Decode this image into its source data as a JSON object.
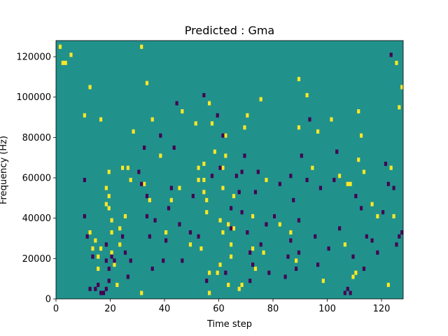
{
  "chart_data": {
    "type": "heatmap",
    "title": "Predicted : Gma",
    "xlabel": "Time step",
    "ylabel": "Frequency (Hz)",
    "xlim": [
      0,
      128
    ],
    "ylim": [
      0,
      128000
    ],
    "x_ticks": [
      0,
      20,
      40,
      60,
      80,
      100,
      120
    ],
    "y_ticks": [
      0,
      20000,
      40000,
      60000,
      80000,
      100000,
      120000
    ],
    "y_tick_labels": [
      "0",
      "20000",
      "40000",
      "60000",
      "80000",
      "100000",
      "120000"
    ],
    "colormap": "viridis",
    "colors": {
      "background": "#21918c",
      "high": "#fde725",
      "low": "#440154"
    },
    "grid": false,
    "legend": "none",
    "cells_high": [
      [
        1,
        124000
      ],
      [
        2,
        116000
      ],
      [
        3,
        116000
      ],
      [
        5,
        120000
      ],
      [
        10,
        90000
      ],
      [
        12,
        104000
      ],
      [
        12,
        32000
      ],
      [
        13,
        24000
      ],
      [
        14,
        28000
      ],
      [
        15,
        20000
      ],
      [
        15,
        14000
      ],
      [
        16,
        88000
      ],
      [
        16,
        24000
      ],
      [
        18,
        54000
      ],
      [
        18,
        46000
      ],
      [
        19,
        62000
      ],
      [
        19,
        50000
      ],
      [
        19,
        44000
      ],
      [
        20,
        38000
      ],
      [
        20,
        32000
      ],
      [
        20,
        22000
      ],
      [
        21,
        16000
      ],
      [
        22,
        6000
      ],
      [
        23,
        34000
      ],
      [
        23,
        26000
      ],
      [
        24,
        64000
      ],
      [
        25,
        40000
      ],
      [
        26,
        64000
      ],
      [
        27,
        58000
      ],
      [
        28,
        82000
      ],
      [
        31,
        124000
      ],
      [
        31,
        2000
      ],
      [
        32,
        56000
      ],
      [
        33,
        106000
      ],
      [
        34,
        48000
      ],
      [
        35,
        88000
      ],
      [
        38,
        70000
      ],
      [
        40,
        32000
      ],
      [
        42,
        48000
      ],
      [
        45,
        54000
      ],
      [
        46,
        92000
      ],
      [
        49,
        26000
      ],
      [
        51,
        86000
      ],
      [
        52,
        58000
      ],
      [
        52,
        64000
      ],
      [
        53,
        24000
      ],
      [
        54,
        66000
      ],
      [
        54,
        58000
      ],
      [
        54,
        52000
      ],
      [
        55,
        48000
      ],
      [
        55,
        42000
      ],
      [
        56,
        96000
      ],
      [
        56,
        12000
      ],
      [
        56,
        2000
      ],
      [
        57,
        86000
      ],
      [
        58,
        72000
      ],
      [
        59,
        12000
      ],
      [
        60,
        38000
      ],
      [
        60,
        16000
      ],
      [
        61,
        32000
      ],
      [
        61,
        54000
      ],
      [
        61,
        64000
      ],
      [
        62,
        70000
      ],
      [
        62,
        80000
      ],
      [
        63,
        36000
      ],
      [
        63,
        6000
      ],
      [
        64,
        20000
      ],
      [
        64,
        26000
      ],
      [
        65,
        34000
      ],
      [
        65,
        50000
      ],
      [
        67,
        4000
      ],
      [
        68,
        6000
      ],
      [
        69,
        84000
      ],
      [
        70,
        90000
      ],
      [
        72,
        40000
      ],
      [
        72,
        24000
      ],
      [
        73,
        14000
      ],
      [
        75,
        98000
      ],
      [
        76,
        22000
      ],
      [
        77,
        58000
      ],
      [
        80,
        40000
      ],
      [
        82,
        36000
      ],
      [
        86,
        32000
      ],
      [
        88,
        18000
      ],
      [
        89,
        84000
      ],
      [
        89,
        108000
      ],
      [
        92,
        100000
      ],
      [
        94,
        64000
      ],
      [
        96,
        82000
      ],
      [
        98,
        8000
      ],
      [
        101,
        88000
      ],
      [
        104,
        60000
      ],
      [
        106,
        26000
      ],
      [
        107,
        56000
      ],
      [
        108,
        56000
      ],
      [
        109,
        10000
      ],
      [
        110,
        12000
      ],
      [
        111,
        92000
      ],
      [
        111,
        68000
      ],
      [
        112,
        80000
      ],
      [
        113,
        62000
      ],
      [
        116,
        46000
      ],
      [
        118,
        40000
      ],
      [
        122,
        6000
      ],
      [
        123,
        64000
      ],
      [
        124,
        40000
      ],
      [
        125,
        116000
      ],
      [
        126,
        94000
      ],
      [
        127,
        104000
      ]
    ],
    "cells_low": [
      [
        10,
        58000
      ],
      [
        10,
        40000
      ],
      [
        11,
        30000
      ],
      [
        12,
        4000
      ],
      [
        13,
        20000
      ],
      [
        14,
        4000
      ],
      [
        15,
        6000
      ],
      [
        16,
        2000
      ],
      [
        17,
        2000
      ],
      [
        18,
        4000
      ],
      [
        18,
        26000
      ],
      [
        18,
        18000
      ],
      [
        19,
        14000
      ],
      [
        19,
        8000
      ],
      [
        20,
        20000
      ],
      [
        21,
        18000
      ],
      [
        24,
        30000
      ],
      [
        25,
        22000
      ],
      [
        26,
        10000
      ],
      [
        27,
        18000
      ],
      [
        30,
        62000
      ],
      [
        31,
        56000
      ],
      [
        32,
        74000
      ],
      [
        33,
        50000
      ],
      [
        33,
        40000
      ],
      [
        34,
        30000
      ],
      [
        35,
        14000
      ],
      [
        36,
        38000
      ],
      [
        38,
        80000
      ],
      [
        39,
        18000
      ],
      [
        40,
        28000
      ],
      [
        41,
        44000
      ],
      [
        42,
        54000
      ],
      [
        43,
        74000
      ],
      [
        44,
        96000
      ],
      [
        45,
        36000
      ],
      [
        46,
        18000
      ],
      [
        49,
        32000
      ],
      [
        50,
        50000
      ],
      [
        52,
        30000
      ],
      [
        54,
        100000
      ],
      [
        55,
        8000
      ],
      [
        57,
        60000
      ],
      [
        59,
        90000
      ],
      [
        60,
        64000
      ],
      [
        61,
        80000
      ],
      [
        62,
        12000
      ],
      [
        64,
        44000
      ],
      [
        64,
        34000
      ],
      [
        66,
        60000
      ],
      [
        67,
        52000
      ],
      [
        68,
        42000
      ],
      [
        68,
        62000
      ],
      [
        69,
        70000
      ],
      [
        70,
        32000
      ],
      [
        71,
        22000
      ],
      [
        71,
        8000
      ],
      [
        72,
        16000
      ],
      [
        73,
        52000
      ],
      [
        74,
        62000
      ],
      [
        75,
        26000
      ],
      [
        77,
        36000
      ],
      [
        78,
        12000
      ],
      [
        80,
        40000
      ],
      [
        82,
        56000
      ],
      [
        84,
        10000
      ],
      [
        85,
        20000
      ],
      [
        86,
        60000
      ],
      [
        86,
        28000
      ],
      [
        87,
        48000
      ],
      [
        88,
        14000
      ],
      [
        89,
        38000
      ],
      [
        89,
        22000
      ],
      [
        90,
        70000
      ],
      [
        92,
        58000
      ],
      [
        93,
        88000
      ],
      [
        95,
        30000
      ],
      [
        96,
        16000
      ],
      [
        97,
        54000
      ],
      [
        100,
        24000
      ],
      [
        102,
        58000
      ],
      [
        103,
        72000
      ],
      [
        104,
        34000
      ],
      [
        106,
        2000
      ],
      [
        107,
        4000
      ],
      [
        108,
        2000
      ],
      [
        109,
        20000
      ],
      [
        110,
        50000
      ],
      [
        112,
        44000
      ],
      [
        113,
        14000
      ],
      [
        114,
        30000
      ],
      [
        116,
        28000
      ],
      [
        118,
        22000
      ],
      [
        120,
        42000
      ],
      [
        121,
        66000
      ],
      [
        122,
        56000
      ],
      [
        123,
        120000
      ],
      [
        124,
        54000
      ],
      [
        125,
        26000
      ],
      [
        126,
        30000
      ],
      [
        127,
        32000
      ]
    ]
  }
}
